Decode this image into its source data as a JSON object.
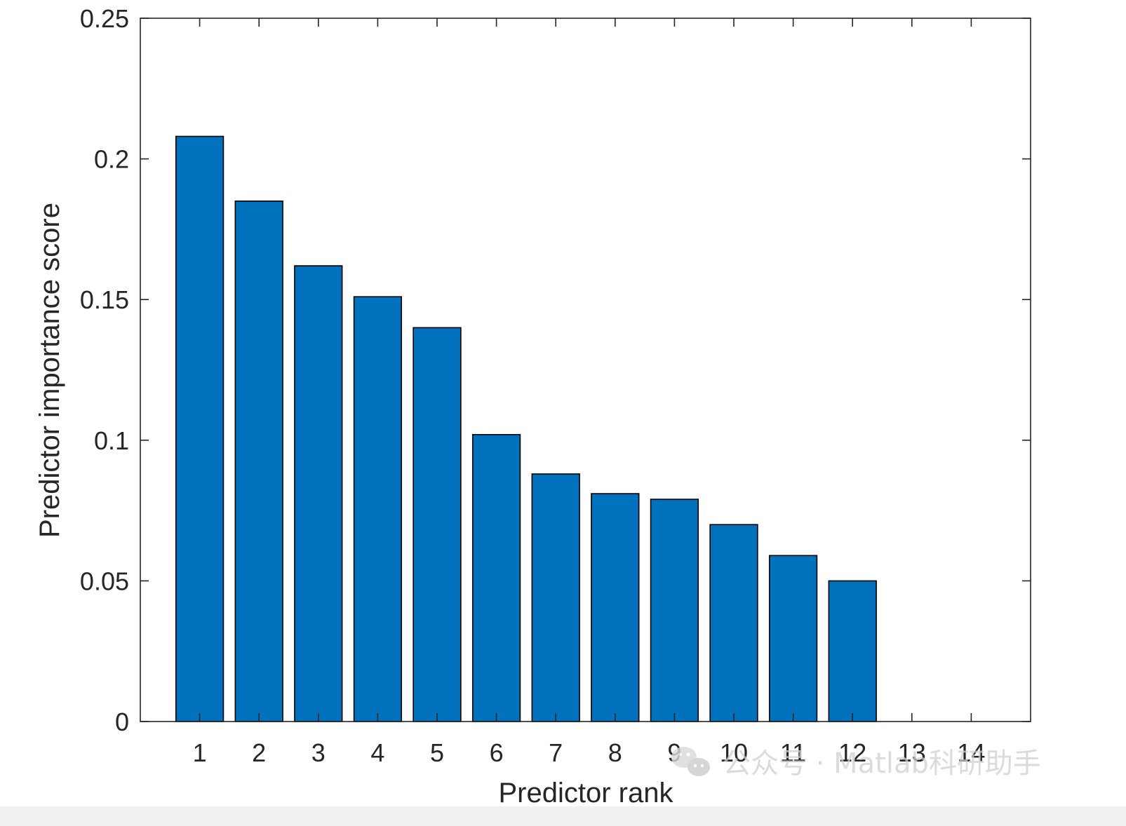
{
  "chart_data": {
    "type": "bar",
    "categories": [
      "1",
      "2",
      "3",
      "4",
      "5",
      "6",
      "7",
      "8",
      "9",
      "10",
      "11",
      "12",
      "13",
      "14"
    ],
    "values": [
      0.208,
      0.185,
      0.162,
      0.151,
      0.14,
      0.102,
      0.088,
      0.081,
      0.079,
      0.07,
      0.059,
      0.05,
      0,
      0
    ],
    "title": "",
    "xlabel": "Predictor rank",
    "ylabel": "Predictor importance score",
    "ylim": [
      0,
      0.25
    ],
    "yticks": [
      0,
      0.05,
      0.1,
      0.15,
      0.2,
      0.25
    ],
    "ytick_labels": [
      "0",
      "0.05",
      "0.1",
      "0.15",
      "0.2",
      "0.25"
    ],
    "grid": false,
    "legend": "none",
    "colors": {
      "bar_fill": "#0072BD",
      "bar_edge": "#000000",
      "axes": "#262626"
    }
  },
  "watermark": {
    "text": "公众号 · Matlab科研助手",
    "icon": "wechat-icon"
  }
}
